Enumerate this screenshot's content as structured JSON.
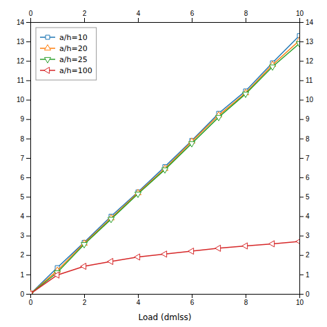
{
  "chart_data": {
    "type": "line",
    "xlabel": "Load (dmlss)",
    "x": [
      0,
      1,
      2,
      3,
      4,
      5,
      6,
      7,
      8,
      9,
      10
    ],
    "series": [
      {
        "name": "a/h=10",
        "marker": "square",
        "values": [
          0.0,
          1.35,
          2.65,
          4.0,
          5.25,
          6.55,
          7.9,
          9.3,
          10.45,
          11.9,
          13.3
        ]
      },
      {
        "name": "a/h=20",
        "marker": "triangle-up",
        "values": [
          0.0,
          1.2,
          2.6,
          3.9,
          5.2,
          6.45,
          7.85,
          9.2,
          10.35,
          11.8,
          13.05
        ]
      },
      {
        "name": "a/h=25",
        "marker": "triangle-down",
        "values": [
          0.0,
          1.1,
          2.55,
          3.85,
          5.15,
          6.4,
          7.75,
          9.1,
          10.3,
          11.7,
          12.9
        ]
      },
      {
        "name": "a/h=100",
        "marker": "triangle-left",
        "values": [
          0.0,
          0.97,
          1.42,
          1.67,
          1.9,
          2.05,
          2.2,
          2.35,
          2.47,
          2.58,
          2.7
        ]
      }
    ],
    "xlim": [
      0,
      10
    ],
    "ylim": [
      0,
      14
    ],
    "xticks": [
      0,
      2,
      4,
      6,
      8,
      10
    ],
    "yticks": [
      0,
      1,
      2,
      3,
      4,
      5,
      6,
      7,
      8,
      9,
      10,
      11,
      12,
      13,
      14
    ],
    "legend": "upper left",
    "grid": false
  }
}
